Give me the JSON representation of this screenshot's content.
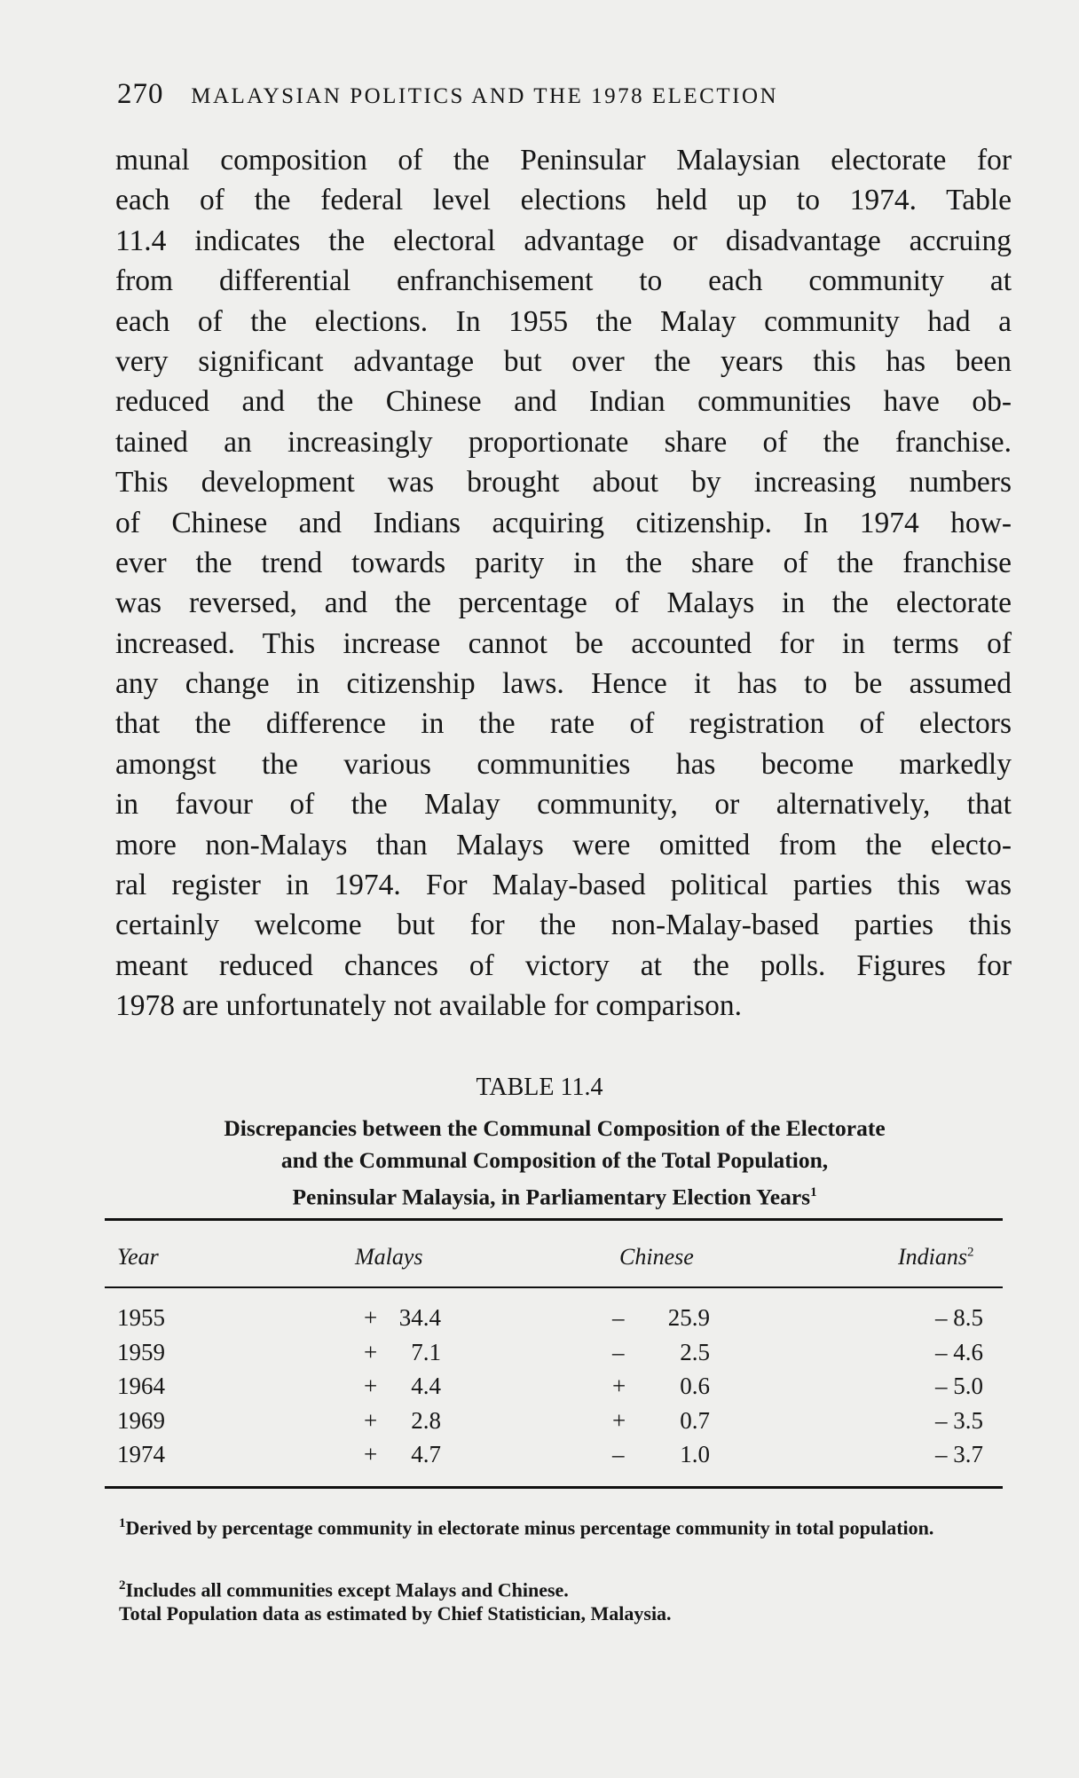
{
  "header": {
    "page_number": "270",
    "running_title": "MALAYSIAN POLITICS AND THE 1978 ELECTION"
  },
  "body_lines": [
    "munal composition of the Peninsular Malaysian electorate for",
    "each of the federal level elections held up to 1974. Table",
    "11.4 indicates the electoral advantage or disadvantage accruing",
    "from differential enfranchisement to each community at",
    "each of the elections. In 1955 the Malay community had a",
    "very significant advantage but over the years this has been",
    "reduced and the Chinese and Indian communities have ob-",
    "tained an increasingly proportionate share of the franchise.",
    "This development was brought about by increasing numbers",
    "of Chinese and Indians acquiring citizenship. In 1974 how-",
    "ever the trend towards parity in the share of the franchise",
    "was reversed, and the percentage of Malays in the electorate",
    "increased. This increase cannot be accounted for in terms of",
    "any change in citizenship laws. Hence it has to be assumed",
    "that the difference in the rate of registration of electors",
    "amongst the various communities has become markedly",
    "in favour of the Malay community, or alternatively, that",
    "more non-Malays than Malays were omitted from the electo-",
    "ral register in 1974. For Malay-based political parties this was",
    "certainly welcome but for the non-Malay-based parties this",
    "meant reduced chances of victory at the polls. Figures for",
    "1978 are unfortunately not available for comparison."
  ],
  "table": {
    "title": "TABLE 11.4",
    "caption": [
      "Discrepancies between the Communal Composition of the Electorate",
      "and the Communal Composition of the Total Population,",
      "Peninsular Malaysia, in Parliamentary Election Years"
    ],
    "caption_note": "1",
    "columns": [
      "Year",
      "Malays",
      "Chinese",
      "Indians"
    ],
    "indians_note": "2",
    "rows": [
      {
        "year": "1955",
        "malays_sign": "+",
        "malays": "34.4",
        "chinese_sign": "–",
        "chinese": "25.9",
        "indians": "– 8.5"
      },
      {
        "year": "1959",
        "malays_sign": "+",
        "malays": "7.1",
        "chinese_sign": "–",
        "chinese": "2.5",
        "indians": "– 4.6"
      },
      {
        "year": "1964",
        "malays_sign": "+",
        "malays": "4.4",
        "chinese_sign": "+",
        "chinese": "0.6",
        "indians": "– 5.0"
      },
      {
        "year": "1969",
        "malays_sign": "+",
        "malays": "2.8",
        "chinese_sign": "+",
        "chinese": "0.7",
        "indians": "– 3.5"
      },
      {
        "year": "1974",
        "malays_sign": "+",
        "malays": "4.7",
        "chinese_sign": "–",
        "chinese": "1.0",
        "indians": "– 3.7"
      }
    ]
  },
  "footnotes": [
    {
      "mark": "1",
      "text": "Derived by percentage community in electorate minus percentage community in total population."
    },
    {
      "mark": "2",
      "text": "Includes all communities except Malays and Chinese."
    },
    {
      "mark": "",
      "text": "Total Population data as estimated by Chief Statistician, Malaysia."
    }
  ]
}
